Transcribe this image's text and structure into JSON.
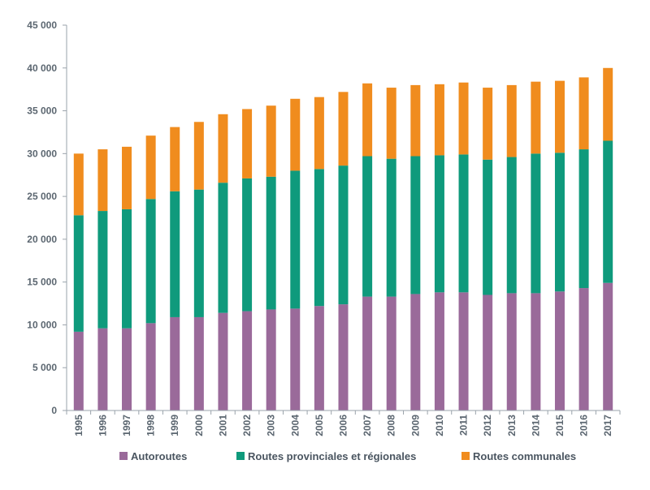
{
  "chart_data": {
    "type": "bar",
    "stacked": true,
    "title": "",
    "xlabel": "",
    "ylabel": "",
    "categories": [
      "1995",
      "1996",
      "1997",
      "1998",
      "1999",
      "2000",
      "2001",
      "2002",
      "2003",
      "2004",
      "2005",
      "2006",
      "2007",
      "2008",
      "2009",
      "2010",
      "2011",
      "2012",
      "2013",
      "2014",
      "2015",
      "2016",
      "2017"
    ],
    "series": [
      {
        "name": "Autoroutes",
        "color": "#9a6a9a",
        "values": [
          9200,
          9600,
          9600,
          10200,
          10900,
          10900,
          11400,
          11600,
          11800,
          11900,
          12200,
          12400,
          13300,
          13300,
          13600,
          13800,
          13800,
          13500,
          13700,
          13700,
          13900,
          14300,
          14900
        ]
      },
      {
        "name": "Routes provinciales et régionales",
        "color": "#0f9a7c",
        "values": [
          13600,
          13700,
          13900,
          14500,
          14700,
          14900,
          15200,
          15500,
          15500,
          16100,
          16000,
          16200,
          16400,
          16100,
          16100,
          16000,
          16100,
          15800,
          15900,
          16300,
          16200,
          16200,
          16600
        ]
      },
      {
        "name": "Routes communales",
        "color": "#f08c1e",
        "values": [
          7200,
          7200,
          7300,
          7400,
          7500,
          7900,
          8000,
          8100,
          8300,
          8400,
          8400,
          8600,
          8500,
          8300,
          8300,
          8300,
          8400,
          8400,
          8400,
          8400,
          8400,
          8400,
          8500
        ]
      }
    ],
    "ylim": [
      0,
      45000
    ],
    "yticks": [
      0,
      5000,
      10000,
      15000,
      20000,
      25000,
      30000,
      35000,
      40000,
      45000
    ],
    "ytick_labels": [
      "0",
      "5 000",
      "10 000",
      "15 000",
      "20 000",
      "25 000",
      "30 000",
      "35 000",
      "40 000",
      "45 000"
    ],
    "grid": false,
    "legend_position": "bottom"
  }
}
